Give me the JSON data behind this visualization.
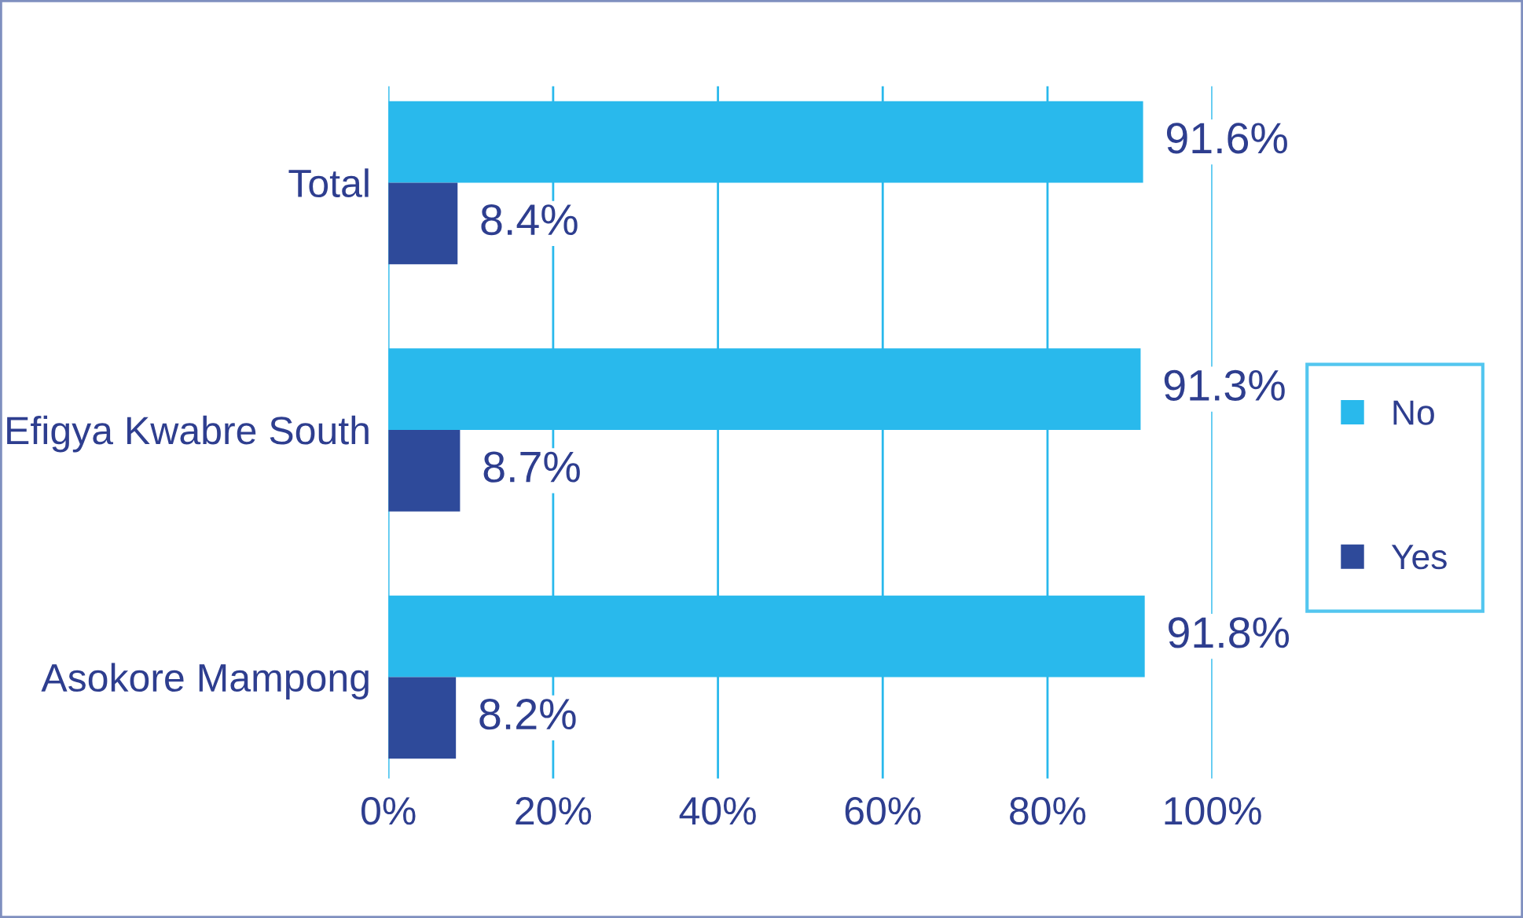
{
  "chart_data": {
    "type": "bar",
    "orientation": "horizontal",
    "categories": [
      "Total",
      "Efigya Kwabre South",
      "Asokore Mampong"
    ],
    "series": [
      {
        "name": "No",
        "color": "#29b9ec",
        "values": [
          91.6,
          91.3,
          91.8
        ],
        "value_labels": [
          "91.6%",
          "91.3%",
          "91.8%"
        ]
      },
      {
        "name": "Yes",
        "color": "#2e4a9a",
        "values": [
          8.4,
          8.7,
          8.2
        ],
        "value_labels": [
          "8.4%",
          "8.7%",
          "8.2%"
        ]
      }
    ],
    "xlim": [
      0,
      100
    ],
    "xticks": [
      {
        "value": 0,
        "label": "0%"
      },
      {
        "value": 20,
        "label": "20%"
      },
      {
        "value": 40,
        "label": "40%"
      },
      {
        "value": 60,
        "label": "60%"
      },
      {
        "value": 80,
        "label": "80%"
      },
      {
        "value": 100,
        "label": "100%"
      }
    ],
    "grid": "x",
    "legend": "right"
  }
}
